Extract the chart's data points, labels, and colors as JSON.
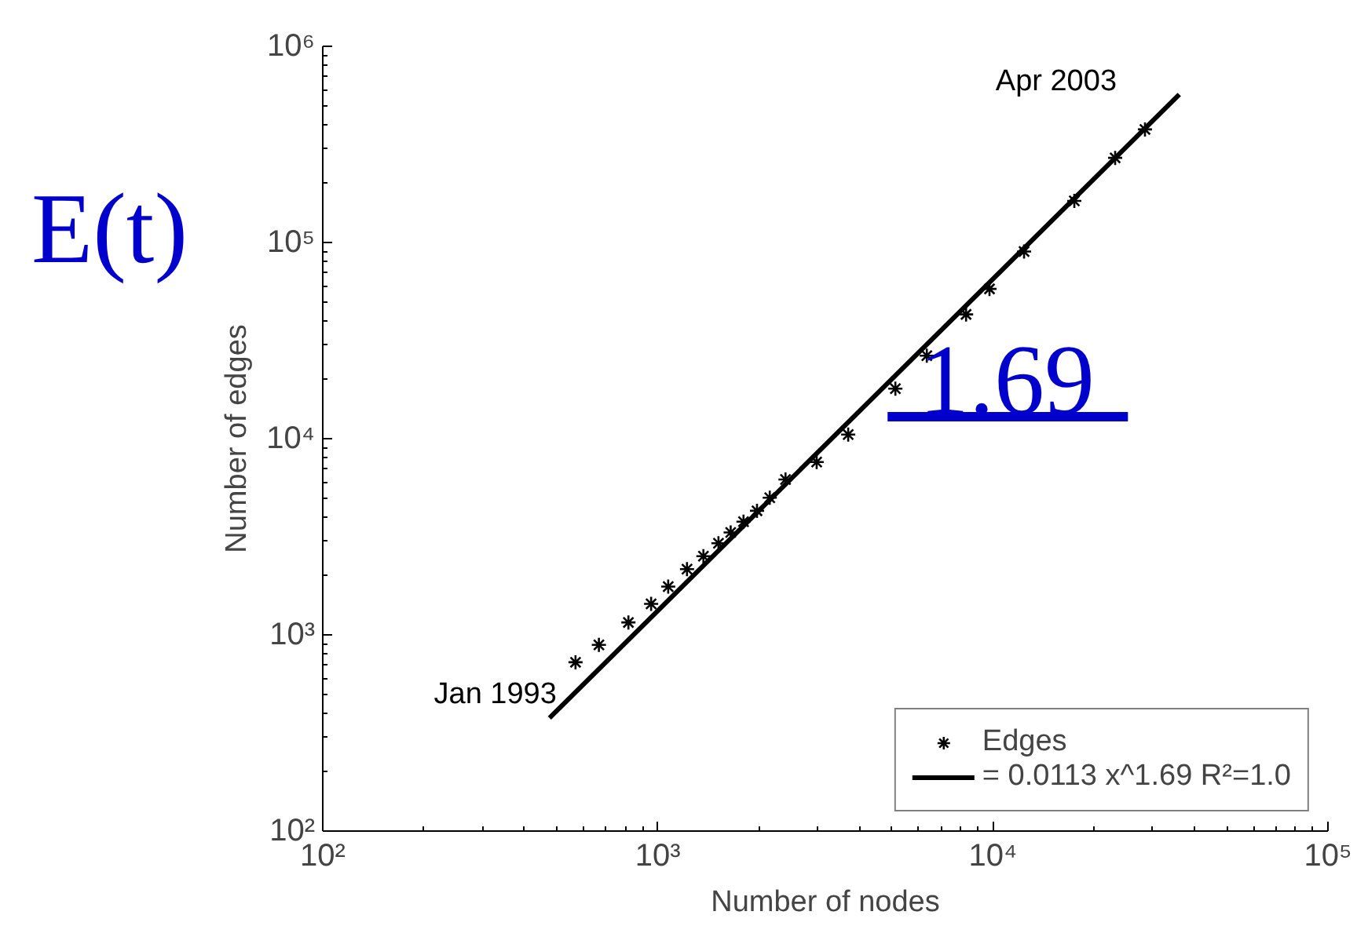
{
  "chart_data": {
    "type": "scatter",
    "xlabel": "Number of nodes",
    "ylabel": "Number of edges",
    "log": "xy",
    "xlim": [
      100,
      100000
    ],
    "ylim": [
      100,
      1000000
    ],
    "xticks": [
      {
        "value": 100,
        "label": "10²"
      },
      {
        "value": 1000,
        "label": "10³"
      },
      {
        "value": 10000,
        "label": "10⁴"
      },
      {
        "value": 100000,
        "label": "10⁵"
      }
    ],
    "yticks": [
      {
        "value": 100,
        "label": "10²"
      },
      {
        "value": 1000,
        "label": "10³"
      },
      {
        "value": 10000,
        "label": "10⁴"
      },
      {
        "value": 100000,
        "label": "10⁵"
      },
      {
        "value": 1000000,
        "label": "10⁶"
      }
    ],
    "grid": false,
    "legend": "bottom right",
    "marker": "cross",
    "series": [
      {
        "name": "Edges",
        "color": "#000000",
        "x": [
          568,
          667,
          817,
          955,
          1074,
          1222,
          1368,
          1517,
          1650,
          1802,
          1977,
          2158,
          2405,
          2979,
          3700,
          5117,
          6350,
          8318,
          9770,
          12390,
          17500,
          23170,
          28440
        ],
        "values": [
          725,
          889,
          1157,
          1439,
          1763,
          2162,
          2518,
          2931,
          3327,
          3776,
          4289,
          5000,
          6194,
          7600,
          10500,
          18000,
          26500,
          43000,
          58000,
          90000,
          163000,
          270000,
          377000
        ]
      },
      {
        "name": "= 0.0113 x^1.69 R²=1.0",
        "type": "line",
        "marker": "none",
        "color": "#000000",
        "x": [
          475,
          36000
        ],
        "values": [
          377,
          568000
        ]
      },
      {
        "type": "line",
        "marker": "none",
        "color": "#0000cc",
        "x": [
          4850,
          25300
        ],
        "values": [
          12940,
          12940
        ]
      }
    ],
    "annotations": [
      "E(t)",
      {
        "text": "1.69",
        "x": 11000,
        "y": 12940
      },
      {
        "text": "Jan 1993",
        "x": 568,
        "y": 725
      },
      {
        "text": "Apr 2003",
        "x": 28440,
        "y": 377000
      }
    ]
  }
}
